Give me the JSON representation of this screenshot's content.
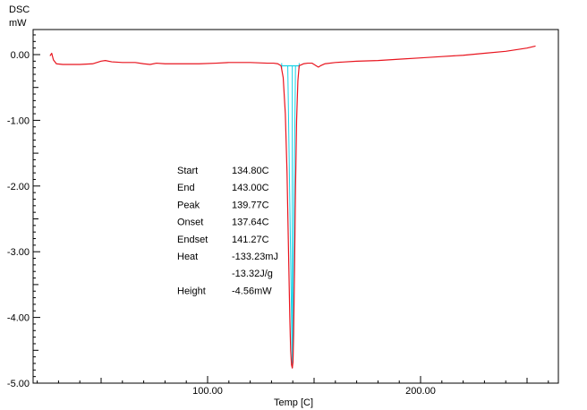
{
  "chart_data": {
    "type": "line",
    "ylabel_line1": "DSC",
    "ylabel_line2": "mW",
    "xlabel": "Temp  [C]",
    "xlim": [
      14,
      262
    ],
    "ylim": [
      -5.0,
      0.4
    ],
    "x_ticks": [
      {
        "value": 100,
        "label": "100.00"
      },
      {
        "value": 200,
        "label": "200.00"
      }
    ],
    "y_ticks": [
      {
        "value": 0,
        "label": "0.00"
      },
      {
        "value": -1,
        "label": "-1.00"
      },
      {
        "value": -2,
        "label": "-2.00"
      },
      {
        "value": -3,
        "label": "-3.00"
      },
      {
        "value": -4,
        "label": "-4.00"
      },
      {
        "value": -5,
        "label": "-5.00"
      }
    ],
    "colors": {
      "curve": "#e8141e",
      "analysis": "#14d2e6",
      "axis": "#000000"
    },
    "series": [
      {
        "points": [
          [
            26.0,
            -0.02
          ],
          [
            26.8,
            0.02
          ],
          [
            27.6,
            -0.08
          ],
          [
            29.0,
            -0.14
          ],
          [
            32,
            -0.15
          ],
          [
            40,
            -0.15
          ],
          [
            46,
            -0.14
          ],
          [
            50,
            -0.1
          ],
          [
            52,
            -0.09
          ],
          [
            55,
            -0.11
          ],
          [
            60,
            -0.12
          ],
          [
            66,
            -0.12
          ],
          [
            70,
            -0.14
          ],
          [
            73,
            -0.15
          ],
          [
            76,
            -0.13
          ],
          [
            80,
            -0.14
          ],
          [
            88,
            -0.14
          ],
          [
            96,
            -0.14
          ],
          [
            104,
            -0.13
          ],
          [
            110,
            -0.12
          ],
          [
            120,
            -0.12
          ],
          [
            128,
            -0.13
          ],
          [
            131,
            -0.13
          ],
          [
            133,
            -0.14
          ],
          [
            134.5,
            -0.17
          ],
          [
            135.5,
            -0.35
          ],
          [
            136.5,
            -0.9
          ],
          [
            137.3,
            -1.8
          ],
          [
            138.0,
            -3.0
          ],
          [
            138.6,
            -4.0
          ],
          [
            139.0,
            -4.5
          ],
          [
            139.4,
            -4.72
          ],
          [
            139.77,
            -4.77
          ],
          [
            140.1,
            -4.68
          ],
          [
            140.4,
            -4.25
          ],
          [
            140.8,
            -3.3
          ],
          [
            141.3,
            -2.0
          ],
          [
            141.8,
            -1.0
          ],
          [
            142.4,
            -0.4
          ],
          [
            143.0,
            -0.17
          ],
          [
            145,
            -0.14
          ],
          [
            147,
            -0.13
          ],
          [
            149,
            -0.13
          ],
          [
            150,
            -0.15
          ],
          [
            151,
            -0.17
          ],
          [
            152,
            -0.19
          ],
          [
            153,
            -0.17
          ],
          [
            155,
            -0.14
          ],
          [
            160,
            -0.12
          ],
          [
            170,
            -0.1
          ],
          [
            180,
            -0.09
          ],
          [
            190,
            -0.07
          ],
          [
            200,
            -0.05
          ],
          [
            210,
            -0.03
          ],
          [
            220,
            -0.01
          ],
          [
            230,
            0.02
          ],
          [
            240,
            0.05
          ],
          [
            250,
            0.1
          ],
          [
            254,
            0.13
          ]
        ]
      }
    ],
    "analysis": {
      "start_x": 134.8,
      "end_x": 143.0,
      "onset_x": 137.64,
      "endset_x": 141.27,
      "peak_x": 139.77,
      "peak_y": -4.77,
      "baseline_y": -0.17
    },
    "annotations": [
      {
        "label": "Start",
        "value": "134.80C"
      },
      {
        "label": "End",
        "value": "143.00C"
      },
      {
        "label": "Peak",
        "value": "139.77C"
      },
      {
        "label": "Onset",
        "value": "137.64C"
      },
      {
        "label": "Endset",
        "value": "141.27C"
      },
      {
        "label": "Heat",
        "value": "-133.23mJ"
      },
      {
        "label": "",
        "value": "-13.32J/g"
      },
      {
        "label": "Height",
        "value": "-4.56mW"
      }
    ]
  }
}
